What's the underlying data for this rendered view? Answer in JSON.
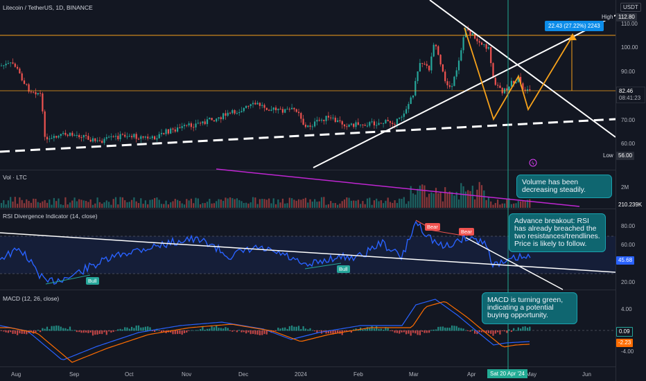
{
  "header": {
    "symbol_title": "Litecoin / TetherUS, 1D, BINANCE",
    "currency_button": "USDT"
  },
  "price_axis": {
    "labels": [
      "110.00",
      "100.00",
      "90.00",
      "80.00",
      "70.00",
      "60.00"
    ],
    "high_label": "High",
    "high_value": "112.80",
    "low_label": "Low",
    "low_value": "56.00",
    "current_price": "82.46",
    "countdown": "08:41:23",
    "measure_label": "22.43 (27.22%) 2243"
  },
  "volume": {
    "title": "Vol · LTC",
    "axis_label": "2M",
    "current": "210.239K",
    "note": "Volume has been decreasing steadily."
  },
  "rsi": {
    "title": "RSI Divergence Indicator (14, close)",
    "axis_labels": [
      "80.00",
      "60.00",
      "40.00",
      "20.00"
    ],
    "current": "45.68",
    "bull_label": "Bull",
    "bear_label": "Bear",
    "note": "Advance breakout: RSI has already breached the two resistances/trendlines. Price is likely to follow."
  },
  "macd": {
    "title": "MACD (12, 26, close)",
    "axis_labels": [
      "4.00",
      "-4.00"
    ],
    "value_green": "0.09",
    "value_orange": "-2.23",
    "note": "MACD is turning green, indicating a potential buying opportunity."
  },
  "time_axis": {
    "labels": [
      "Aug",
      "Sep",
      "Oct",
      "Nov",
      "Dec",
      "2024",
      "Feb",
      "Mar",
      "Apr",
      "May",
      "Jun"
    ],
    "crosshair_date": "Sat 20 Apr '24"
  },
  "colors": {
    "background": "#131722",
    "up": "#26a69a",
    "down": "#ef5350",
    "orange": "#f7a21b",
    "rsi_line": "#2962ff",
    "crosshair": "#22ab94"
  }
}
